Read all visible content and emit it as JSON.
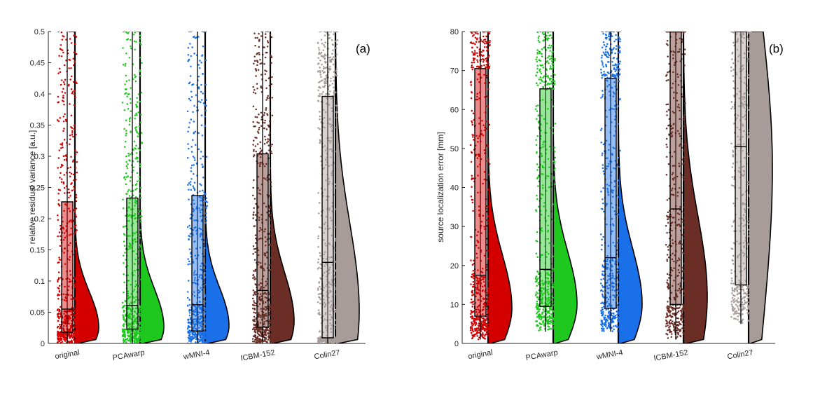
{
  "chart_data": [
    {
      "type": "raincloud",
      "panel_label": "(a)",
      "ylabel": "relative residual variance [a.u.]",
      "ylim": [
        0,
        0.5
      ],
      "yticks": [
        "0",
        "0.05",
        "0.1",
        "0.15",
        "0.2",
        "0.25",
        "0.3",
        "0.35",
        "0.4",
        "0.45",
        "0.5"
      ],
      "ytick_values": [
        0,
        0.05,
        0.1,
        0.15,
        0.2,
        0.25,
        0.3,
        0.35,
        0.4,
        0.45,
        0.5
      ],
      "categories": [
        "original",
        "PCAwarp",
        "wMNI-4",
        "ICBM-152",
        "Colin27"
      ],
      "series": [
        {
          "q1": 0.018,
          "median": 0.055,
          "q3": 0.227,
          "whisker_low": 0.0,
          "whisker_high": 0.5,
          "density_mode": 0.025,
          "density_spread": 0.055,
          "skew": 1.1,
          "spread": 0.45,
          "color": "#d40000"
        },
        {
          "q1": 0.023,
          "median": 0.061,
          "q3": 0.233,
          "whisker_low": 0.0,
          "whisker_high": 0.5,
          "density_mode": 0.026,
          "density_spread": 0.06,
          "skew": 1.05,
          "spread": 0.45,
          "color": "#1ec81e"
        },
        {
          "q1": 0.02,
          "median": 0.062,
          "q3": 0.237,
          "whisker_low": 0.0,
          "whisker_high": 0.5,
          "density_mode": 0.028,
          "density_spread": 0.06,
          "skew": 1.05,
          "spread": 0.45,
          "color": "#1a70e8"
        },
        {
          "q1": 0.026,
          "median": 0.085,
          "q3": 0.304,
          "whisker_low": 0.0,
          "whisker_high": 0.5,
          "density_mode": 0.035,
          "density_spread": 0.08,
          "skew": 0.95,
          "spread": 0.45,
          "color": "#6b2e26"
        },
        {
          "q1": 0.009,
          "median": 0.13,
          "q3": 0.396,
          "whisker_low": 0.0,
          "whisker_high": 0.5,
          "density_mode": 0.05,
          "density_spread": 0.17,
          "skew": 0.7,
          "spread": 0.5,
          "color": "#a89c9a"
        }
      ]
    },
    {
      "type": "raincloud",
      "panel_label": "(b)",
      "ylabel": "source localization error [mm]",
      "ylim": [
        0,
        80
      ],
      "yticks": [
        "0",
        "10",
        "20",
        "30",
        "40",
        "50",
        "60",
        "70",
        "80"
      ],
      "ytick_values": [
        0,
        10,
        20,
        30,
        40,
        50,
        60,
        70,
        80
      ],
      "categories": [
        "original",
        "PCAwarp",
        "wMNI-4",
        "ICBM-152",
        "Colin27"
      ],
      "series": [
        {
          "q1": 7,
          "median": 17.5,
          "q3": 70.5,
          "whisker_low": 1,
          "whisker_high": 80,
          "density_mode": 9,
          "density_spread": 14,
          "skew": 0.95,
          "spread": 0.5,
          "color": "#d40000"
        },
        {
          "q1": 9.5,
          "median": 19,
          "q3": 65.3,
          "whisker_low": 3,
          "whisker_high": 80,
          "density_mode": 10,
          "density_spread": 14,
          "skew": 0.95,
          "spread": 0.5,
          "color": "#1ec81e"
        },
        {
          "q1": 9,
          "median": 22,
          "q3": 68,
          "whisker_low": 3,
          "whisker_high": 80,
          "density_mode": 10,
          "density_spread": 15,
          "skew": 0.9,
          "spread": 0.5,
          "color": "#1a70e8"
        },
        {
          "q1": 10,
          "median": 34.5,
          "q3": 80,
          "whisker_low": 1,
          "whisker_high": 80,
          "density_mode": 12,
          "density_spread": 28,
          "skew": 0.55,
          "spread": 0.5,
          "color": "#6b2e26"
        },
        {
          "q1": 15,
          "median": 50.5,
          "q3": 80,
          "whisker_low": 5,
          "whisker_high": 80,
          "density_mode": 45,
          "density_spread": 60,
          "skew": 0.35,
          "spread": 0.5,
          "color": "#a89c9a"
        }
      ]
    }
  ]
}
